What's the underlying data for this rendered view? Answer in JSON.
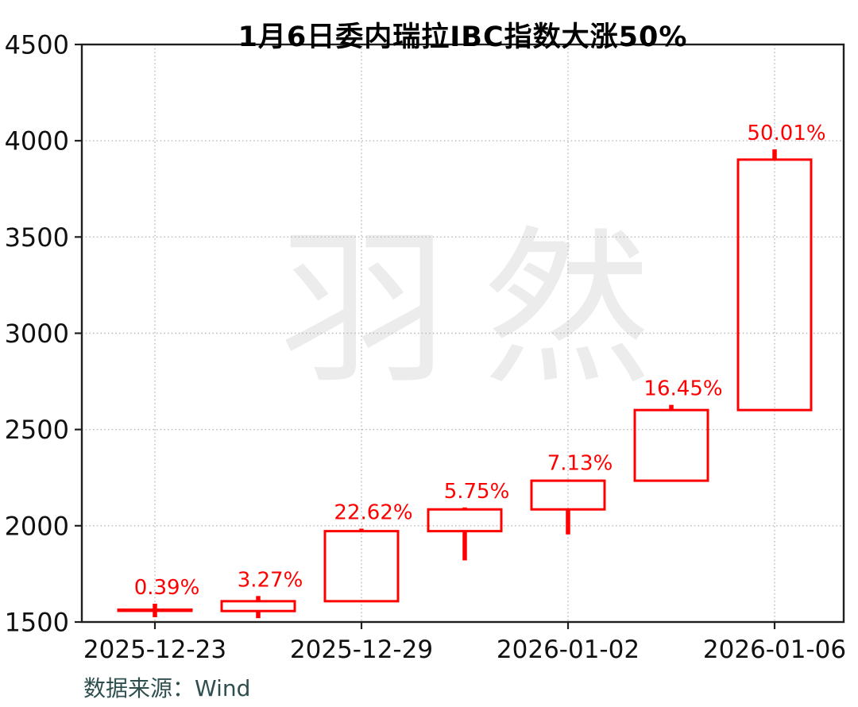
{
  "chart_data": {
    "type": "candlestick",
    "title": "1月6日委内瑞拉IBC指数大涨50%",
    "source_note": "数据来源：Wind",
    "watermark": "羽然",
    "legend": "none",
    "grid": "dotted",
    "y_axis": {
      "min": 1500,
      "max": 4500,
      "step": 500,
      "tick_labels": [
        "1500",
        "2000",
        "2500",
        "3000",
        "3500",
        "4000",
        "4500"
      ]
    },
    "x_axis": {
      "tick_labels": [
        {
          "candle_index": 0,
          "label": "2025-12-23"
        },
        {
          "candle_index": 2,
          "label": "2025-12-29"
        },
        {
          "candle_index": 4,
          "label": "2026-01-02"
        },
        {
          "candle_index": 6,
          "label": "2026-01-06"
        }
      ]
    },
    "candles": [
      {
        "open": 1558,
        "high": 1595,
        "low": 1525,
        "close": 1564,
        "change_label": "0.39%"
      },
      {
        "open": 1557,
        "high": 1635,
        "low": 1520,
        "close": 1608,
        "change_label": "3.27%"
      },
      {
        "open": 1608,
        "high": 1985,
        "low": 1608,
        "close": 1972,
        "change_label": "22.62%"
      },
      {
        "open": 1972,
        "high": 2095,
        "low": 1820,
        "close": 2085,
        "change_label": "5.75%"
      },
      {
        "open": 2085,
        "high": 2240,
        "low": 1955,
        "close": 2234,
        "change_label": "7.13%"
      },
      {
        "open": 2234,
        "high": 2628,
        "low": 2234,
        "close": 2601,
        "change_label": "16.45%"
      },
      {
        "open": 2601,
        "high": 3955,
        "low": 2601,
        "close": 3902,
        "change_label": "50.01%"
      }
    ],
    "colors": {
      "candle": "#ff0000",
      "pct_label": "#ff0000",
      "grid": "#b8b8b8",
      "axis": "#1f1f1f",
      "tick_text": "#111111",
      "watermark": "#ececec",
      "source_text": "#2f4f4f",
      "title_text": "#000000"
    }
  }
}
